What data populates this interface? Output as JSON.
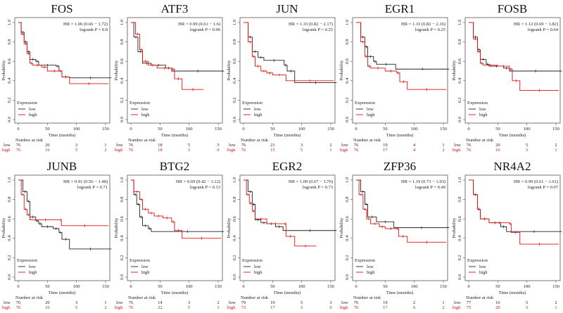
{
  "chart_data": [
    {
      "type": "line",
      "title": "FOS",
      "hr": "HR = 1.06 (0.66 − 1.72)",
      "p": "logrank P = 0.8",
      "low": [
        [
          0,
          1
        ],
        [
          5,
          0.9
        ],
        [
          10,
          0.8
        ],
        [
          15,
          0.7
        ],
        [
          20,
          0.62
        ],
        [
          30,
          0.6
        ],
        [
          35,
          0.56
        ],
        [
          65,
          0.55
        ],
        [
          70,
          0.5
        ],
        [
          75,
          0.44
        ],
        [
          88,
          0.43
        ],
        [
          160,
          0.43
        ]
      ],
      "high": [
        [
          0,
          1
        ],
        [
          5,
          0.88
        ],
        [
          10,
          0.78
        ],
        [
          15,
          0.68
        ],
        [
          20,
          0.58
        ],
        [
          25,
          0.56
        ],
        [
          40,
          0.54
        ],
        [
          50,
          0.5
        ],
        [
          75,
          0.44
        ],
        [
          88,
          0.37
        ],
        [
          155,
          0.37
        ]
      ],
      "risk_low": [
        "76",
        "20",
        "3",
        "1"
      ],
      "risk_high": [
        "76",
        "16",
        "5",
        "2"
      ]
    },
    {
      "type": "line",
      "title": "ATF3",
      "hr": "HR = 0.99 (0.61 − 1.6)",
      "p": "logrank P = 0.96",
      "low": [
        [
          0,
          1
        ],
        [
          5,
          0.85
        ],
        [
          12,
          0.7
        ],
        [
          20,
          0.58
        ],
        [
          35,
          0.56
        ],
        [
          60,
          0.53
        ],
        [
          70,
          0.5
        ],
        [
          160,
          0.5
        ]
      ],
      "high": [
        [
          0,
          1
        ],
        [
          8,
          0.88
        ],
        [
          15,
          0.72
        ],
        [
          20,
          0.6
        ],
        [
          30,
          0.56
        ],
        [
          45,
          0.53
        ],
        [
          70,
          0.52
        ],
        [
          75,
          0.42
        ],
        [
          88,
          0.31
        ],
        [
          125,
          0.31
        ]
      ],
      "risk_low": [
        "76",
        "18",
        "5",
        "3"
      ],
      "risk_high": [
        "76",
        "18",
        "3",
        "0"
      ]
    },
    {
      "type": "line",
      "title": "JUN",
      "hr": "HR = 1.33 (0.82 − 2.17)",
      "p": "logrank P = 0.25",
      "low": [
        [
          0,
          1
        ],
        [
          8,
          0.85
        ],
        [
          15,
          0.7
        ],
        [
          25,
          0.64
        ],
        [
          35,
          0.61
        ],
        [
          70,
          0.56
        ],
        [
          75,
          0.5
        ],
        [
          88,
          0.38
        ],
        [
          160,
          0.38
        ]
      ],
      "high": [
        [
          0,
          1
        ],
        [
          8,
          0.8
        ],
        [
          15,
          0.65
        ],
        [
          20,
          0.55
        ],
        [
          30,
          0.5
        ],
        [
          40,
          0.48
        ],
        [
          50,
          0.46
        ],
        [
          73,
          0.4
        ],
        [
          155,
          0.4
        ]
      ],
      "risk_low": [
        "76",
        "21",
        "3",
        "2"
      ],
      "risk_high": [
        "76",
        "15",
        "5",
        "1"
      ]
    },
    {
      "type": "line",
      "title": "EGR1",
      "hr": "HR = 1.33 (0.82 − 2.16)",
      "p": "logrank P = 0.25",
      "low": [
        [
          0,
          1
        ],
        [
          8,
          0.85
        ],
        [
          15,
          0.75
        ],
        [
          20,
          0.65
        ],
        [
          30,
          0.6
        ],
        [
          35,
          0.57
        ],
        [
          68,
          0.52
        ],
        [
          160,
          0.52
        ]
      ],
      "high": [
        [
          0,
          1
        ],
        [
          8,
          0.8
        ],
        [
          15,
          0.65
        ],
        [
          20,
          0.55
        ],
        [
          25,
          0.53
        ],
        [
          50,
          0.5
        ],
        [
          70,
          0.48
        ],
        [
          75,
          0.39
        ],
        [
          88,
          0.31
        ],
        [
          155,
          0.31
        ]
      ],
      "risk_low": [
        "76",
        "19",
        "4",
        "1"
      ],
      "risk_high": [
        "76",
        "17",
        "4",
        "2"
      ]
    },
    {
      "type": "line",
      "title": "FOSB",
      "hr": "HR = 1.12 (0.69 − 1.82)",
      "p": "logrank P = 0.64",
      "low": [
        [
          0,
          1
        ],
        [
          8,
          0.85
        ],
        [
          15,
          0.72
        ],
        [
          20,
          0.62
        ],
        [
          30,
          0.57
        ],
        [
          35,
          0.55
        ],
        [
          60,
          0.53
        ],
        [
          70,
          0.5
        ],
        [
          160,
          0.5
        ]
      ],
      "high": [
        [
          0,
          1
        ],
        [
          8,
          0.83
        ],
        [
          15,
          0.7
        ],
        [
          20,
          0.58
        ],
        [
          25,
          0.56
        ],
        [
          50,
          0.55
        ],
        [
          70,
          0.52
        ],
        [
          75,
          0.4
        ],
        [
          88,
          0.3
        ],
        [
          155,
          0.3
        ]
      ],
      "risk_low": [
        "76",
        "20",
        "5",
        "2"
      ],
      "risk_high": [
        "76",
        "16",
        "3",
        "1"
      ]
    },
    {
      "type": "line",
      "title": "JUNB",
      "hr": "HR = 0.91 (0.56 − 1.48)",
      "p": "logrank P = 0.71",
      "low": [
        [
          0,
          1
        ],
        [
          8,
          0.88
        ],
        [
          15,
          0.78
        ],
        [
          20,
          0.62
        ],
        [
          30,
          0.58
        ],
        [
          35,
          0.55
        ],
        [
          40,
          0.52
        ],
        [
          60,
          0.5
        ],
        [
          70,
          0.46
        ],
        [
          75,
          0.39
        ],
        [
          88,
          0.29
        ],
        [
          160,
          0.29
        ]
      ],
      "high": [
        [
          0,
          1
        ],
        [
          5,
          0.85
        ],
        [
          10,
          0.7
        ],
        [
          15,
          0.64
        ],
        [
          20,
          0.59
        ],
        [
          73,
          0.59
        ],
        [
          74,
          0.53
        ],
        [
          155,
          0.53
        ]
      ],
      "risk_low": [
        "76",
        "20",
        "3",
        "1"
      ],
      "risk_high": [
        "76",
        "16",
        "5",
        "2"
      ]
    },
    {
      "type": "line",
      "title": "BTG2",
      "hr": "HR = 0.69 (0.42 − 1.12)",
      "p": "logrank P = 0.13",
      "low": [
        [
          0,
          1
        ],
        [
          5,
          0.85
        ],
        [
          10,
          0.75
        ],
        [
          15,
          0.62
        ],
        [
          20,
          0.53
        ],
        [
          30,
          0.5
        ],
        [
          35,
          0.47
        ],
        [
          160,
          0.47
        ]
      ],
      "high": [
        [
          0,
          1
        ],
        [
          5,
          0.88
        ],
        [
          15,
          0.8
        ],
        [
          20,
          0.7
        ],
        [
          30,
          0.66
        ],
        [
          40,
          0.63
        ],
        [
          55,
          0.61
        ],
        [
          70,
          0.57
        ],
        [
          75,
          0.48
        ],
        [
          88,
          0.4
        ],
        [
          155,
          0.4
        ]
      ],
      "risk_low": [
        "76",
        "14",
        "3",
        "2"
      ],
      "risk_high": [
        "76",
        "22",
        "5",
        "1"
      ]
    },
    {
      "type": "line",
      "title": "EGR2",
      "hr": "HR = 1.09 (0.67 − 1.76)",
      "p": "logrank P = 0.73",
      "low": [
        [
          0,
          1
        ],
        [
          8,
          0.88
        ],
        [
          15,
          0.75
        ],
        [
          20,
          0.59
        ],
        [
          30,
          0.56
        ],
        [
          40,
          0.55
        ],
        [
          55,
          0.52
        ],
        [
          68,
          0.48
        ],
        [
          160,
          0.48
        ]
      ],
      "high": [
        [
          0,
          1
        ],
        [
          5,
          0.85
        ],
        [
          10,
          0.76
        ],
        [
          15,
          0.68
        ],
        [
          20,
          0.6
        ],
        [
          40,
          0.55
        ],
        [
          70,
          0.55
        ],
        [
          73,
          0.42
        ],
        [
          88,
          0.32
        ],
        [
          125,
          0.32
        ]
      ],
      "risk_low": [
        "79",
        "19",
        "5",
        "3"
      ],
      "risk_high": [
        "73",
        "17",
        "3",
        "0"
      ]
    },
    {
      "type": "line",
      "title": "ZFP36",
      "hr": "HR = 1.19 (0.73 − 1.93)",
      "p": "logrank P = 0.49",
      "low": [
        [
          0,
          1
        ],
        [
          8,
          0.88
        ],
        [
          15,
          0.75
        ],
        [
          20,
          0.62
        ],
        [
          35,
          0.57
        ],
        [
          65,
          0.51
        ],
        [
          160,
          0.51
        ]
      ],
      "high": [
        [
          0,
          1
        ],
        [
          5,
          0.85
        ],
        [
          12,
          0.7
        ],
        [
          18,
          0.6
        ],
        [
          25,
          0.55
        ],
        [
          40,
          0.52
        ],
        [
          50,
          0.5
        ],
        [
          70,
          0.5
        ],
        [
          73,
          0.42
        ],
        [
          88,
          0.36
        ],
        [
          155,
          0.36
        ]
      ],
      "risk_low": [
        "76",
        "19",
        "2",
        "1"
      ],
      "risk_high": [
        "76",
        "17",
        "6",
        "2"
      ]
    },
    {
      "type": "line",
      "title": "NR4A2",
      "hr": "HR = 0.99 (0.61 − 1.61)",
      "p": "logrank P = 0.97",
      "low": [
        [
          0,
          1
        ],
        [
          8,
          0.85
        ],
        [
          15,
          0.7
        ],
        [
          20,
          0.6
        ],
        [
          35,
          0.56
        ],
        [
          55,
          0.52
        ],
        [
          65,
          0.47
        ],
        [
          160,
          0.47
        ]
      ],
      "high": [
        [
          0,
          1
        ],
        [
          8,
          0.85
        ],
        [
          15,
          0.7
        ],
        [
          20,
          0.6
        ],
        [
          35,
          0.56
        ],
        [
          70,
          0.55
        ],
        [
          73,
          0.46
        ],
        [
          88,
          0.34
        ],
        [
          155,
          0.34
        ]
      ],
      "risk_low": [
        "77",
        "16",
        "5",
        "2"
      ],
      "risk_high": [
        "75",
        "20",
        "3",
        "1"
      ]
    }
  ],
  "common": {
    "xlabel": "Time (months)",
    "ylabel": "Probability",
    "xticks": [
      "0",
      "50",
      "100",
      "150"
    ],
    "yticks": [
      "0.0",
      "0.2",
      "0.4",
      "0.6",
      "0.8",
      "1.0"
    ],
    "xlim": [
      0,
      160
    ],
    "ylim": [
      0,
      1
    ],
    "legend_title": "Expression",
    "legend_low": "low",
    "legend_high": "high",
    "legend_position": "bottom-left",
    "risk_title": "Number at risk",
    "colors": {
      "low": "#222222",
      "high": "#e01010"
    }
  }
}
